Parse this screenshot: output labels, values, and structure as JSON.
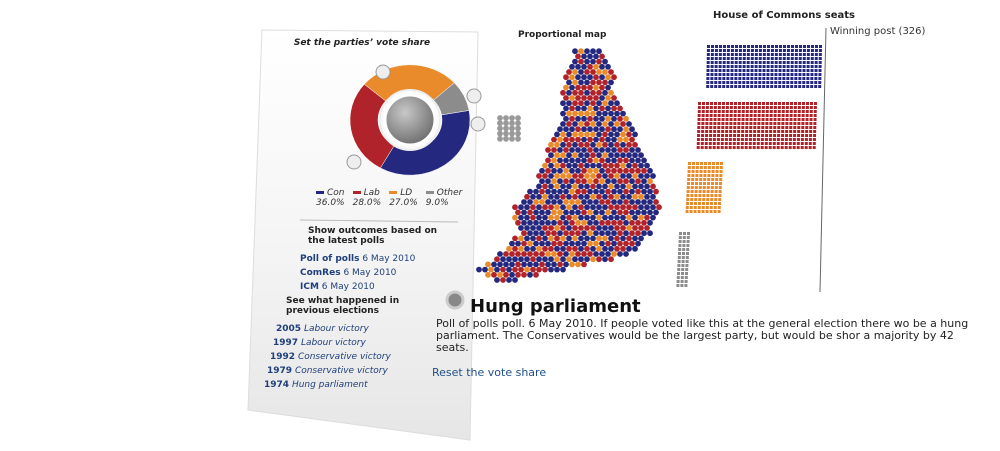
{
  "panel": {
    "title": "Set the parties’ vote share",
    "parties": [
      {
        "name": "Con",
        "color": "#24287f",
        "share": 36.0,
        "share_label": "36.0%"
      },
      {
        "name": "Lab",
        "color": "#b0232a",
        "share": 28.0,
        "share_label": "28.0%"
      },
      {
        "name": "LD",
        "color": "#e98b2a",
        "share": 27.0,
        "share_label": "27.0%"
      },
      {
        "name": "Other",
        "color": "#8c8c8c",
        "share": 9.0,
        "share_label": "9.0%"
      }
    ],
    "polls_heading": "Show outcomes based on the latest polls",
    "polls": [
      {
        "name": "Poll of polls",
        "date": "6 May 2010"
      },
      {
        "name": "ComRes",
        "date": "6 May 2010"
      },
      {
        "name": "ICM",
        "date": "6 May 2010"
      }
    ],
    "elections_heading": "See what happened in previous elections",
    "elections": [
      {
        "year": "2005",
        "result": "Labour victory"
      },
      {
        "year": "1997",
        "result": "Labour victory"
      },
      {
        "year": "1992",
        "result": "Conservative victory"
      },
      {
        "year": "1979",
        "result": "Conservative victory"
      },
      {
        "year": "1974",
        "result": "Hung parliament"
      }
    ]
  },
  "map": {
    "title": "Proportional map"
  },
  "seats": {
    "title": "House of Commons seats",
    "winning_post": "Winning post (326)"
  },
  "result": {
    "title": "Hung parliament",
    "text": "Poll of polls poll. 6 May 2010. If people voted like this at the general election there wo be a hung parliament. The Conservatives would be the largest party, but would be shor a majority by 42 seats.",
    "reset": "Reset the vote share"
  }
}
